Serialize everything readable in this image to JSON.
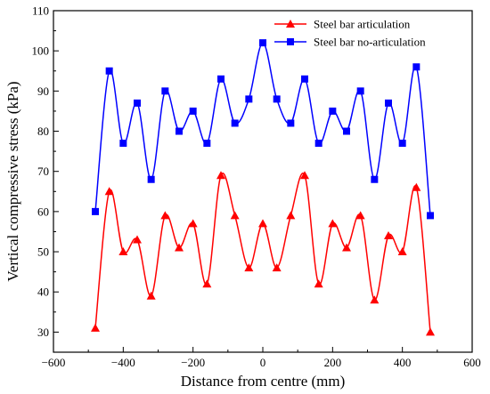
{
  "chart_data": {
    "type": "line",
    "title": "",
    "xlabel": "Distance from centre (mm)",
    "ylabel": "Vertical compressive stress (kPa)",
    "xlim": [
      -600,
      600
    ],
    "ylim": [
      25,
      110
    ],
    "xticks": [
      -600,
      -400,
      -200,
      0,
      200,
      400,
      600
    ],
    "yticks": [
      30,
      40,
      50,
      60,
      70,
      80,
      90,
      100,
      110
    ],
    "grid": false,
    "legend_position": "top-right",
    "x": [
      -480,
      -440,
      -400,
      -360,
      -320,
      -280,
      -240,
      -200,
      -160,
      -120,
      -80,
      -40,
      0,
      40,
      80,
      120,
      160,
      200,
      240,
      280,
      320,
      360,
      400,
      440,
      480
    ],
    "series": [
      {
        "name": "Steel bar articulation",
        "color": "#ff0000",
        "marker": "triangle",
        "values": [
          31,
          65,
          50,
          53,
          39,
          59,
          51,
          57,
          42,
          69,
          59,
          46,
          57,
          46,
          59,
          69,
          42,
          57,
          51,
          59,
          38,
          54,
          50,
          66,
          30
        ]
      },
      {
        "name": "Steel bar no-articulation",
        "color": "#0000ff",
        "marker": "square",
        "values": [
          60,
          95,
          77,
          87,
          68,
          90,
          80,
          85,
          77,
          93,
          82,
          88,
          102,
          88,
          82,
          93,
          77,
          85,
          80,
          90,
          68,
          87,
          77,
          96,
          59
        ]
      }
    ]
  }
}
